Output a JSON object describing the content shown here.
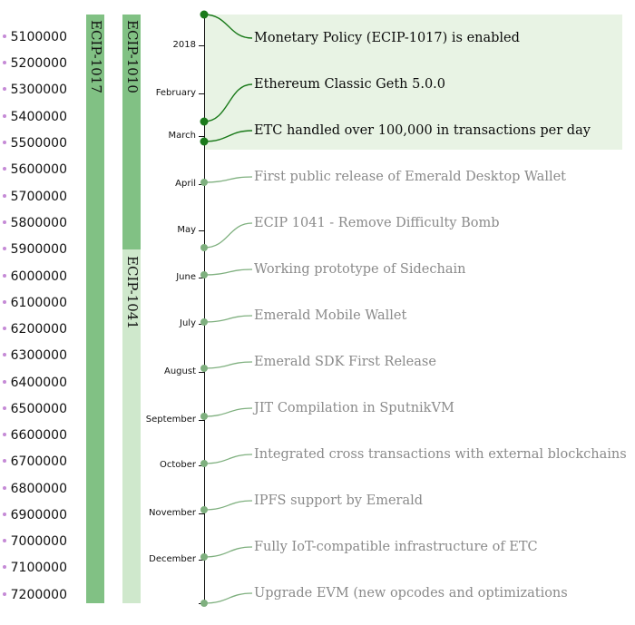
{
  "blocks": [
    "5100000",
    "5200000",
    "5300000",
    "5400000",
    "5500000",
    "5600000",
    "5700000",
    "5800000",
    "5900000",
    "6000000",
    "6100000",
    "6200000",
    "6300000",
    "6400000",
    "6500000",
    "6600000",
    "6700000",
    "6800000",
    "6900000",
    "7000000",
    "7100000",
    "7200000"
  ],
  "ecips": [
    {
      "label": "ECIP-1017",
      "color": "#81c184"
    },
    {
      "label": "ECIP-1010",
      "color": "#81c184"
    },
    {
      "label": "ECIP-1041",
      "color": "#cfe8cc"
    }
  ],
  "ticks": [
    "2018",
    "February",
    "March",
    "April",
    "May",
    "June",
    "July",
    "August",
    "September",
    "October",
    "November",
    "December"
  ],
  "events": [
    {
      "text": "Monetary Policy (ECIP-1017) is enabled",
      "status": "done"
    },
    {
      "text": "Ethereum Classic Geth 5.0.0",
      "status": "done"
    },
    {
      "text": "ETC handled over 100,000 in transactions per day",
      "status": "done"
    },
    {
      "text": "First public release of Emerald Desktop Wallet",
      "status": "planned"
    },
    {
      "text": "ECIP 1041 - Remove Difficulty Bomb",
      "status": "planned"
    },
    {
      "text": "Working prototype of Sidechain",
      "status": "planned"
    },
    {
      "text": "Emerald Mobile Wallet",
      "status": "planned"
    },
    {
      "text": "Emerald SDK First Release",
      "status": "planned"
    },
    {
      "text": "JIT Compilation in SputnikVM",
      "status": "planned"
    },
    {
      "text": "Integrated cross transactions with external blockchains",
      "status": "planned"
    },
    {
      "text": "IPFS support by Emerald",
      "status": "planned"
    },
    {
      "text": "Fully IoT-compatible infrastructure of ETC",
      "status": "planned"
    },
    {
      "text": "Upgrade EVM (new opcodes and optimizations",
      "status": "planned"
    }
  ],
  "colors": {
    "done": "#1a7a1a",
    "planned": "#7fb07f",
    "axis": "#111111"
  }
}
